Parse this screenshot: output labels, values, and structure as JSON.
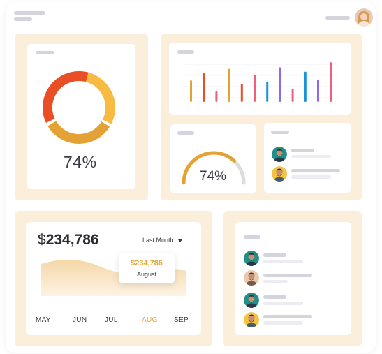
{
  "header": {
    "profile_avatar": "female-avatar"
  },
  "donut_card": {
    "percent_label": "74%",
    "colors": {
      "red": "#e94e27",
      "orange": "#f6bb40",
      "gold": "#e3a233"
    }
  },
  "bar_chart_card": {
    "colors": [
      "#e3a233",
      "#e94e27",
      "#ef5f7c",
      "#e3a233",
      "#e94e27",
      "#ef5f7c",
      "#1a95d4",
      "#8c6af0",
      "#ef5f7c",
      "#1a95d4",
      "#8c6af0",
      "#ef5f7c"
    ]
  },
  "gauge_card": {
    "percent_label": "74%",
    "value": 0.74,
    "colors": {
      "fill": "#e3a233",
      "track": "#dcdcdc"
    }
  },
  "people_card_small": {
    "avatars": [
      "male-avatar-teal",
      "male-avatar-yellow"
    ]
  },
  "revenue_card": {
    "currency": "$",
    "amount": "234,786",
    "period_label": "Last Month",
    "tooltip": {
      "value": "$234,786",
      "month": "August"
    },
    "months": [
      "MAY",
      "JUN",
      "JUL",
      "AUG",
      "SEP"
    ],
    "active_month": "AUG",
    "accent": "#e0a632"
  },
  "people_card_large": {
    "avatars": [
      "male-avatar-teal",
      "male-avatar-beige",
      "male-avatar-teal",
      "male-avatar-yellow"
    ]
  },
  "chart_data": {
    "type": "bar",
    "categories": [
      "",
      "",
      "",
      "",
      "",
      "",
      "",
      "",
      "",
      "",
      "",
      ""
    ],
    "values": [
      30,
      40,
      15,
      46,
      25,
      38,
      28,
      48,
      18,
      42,
      31,
      55
    ],
    "title": "",
    "xlabel": "",
    "ylabel": "",
    "ylim": [
      0,
      60
    ]
  }
}
